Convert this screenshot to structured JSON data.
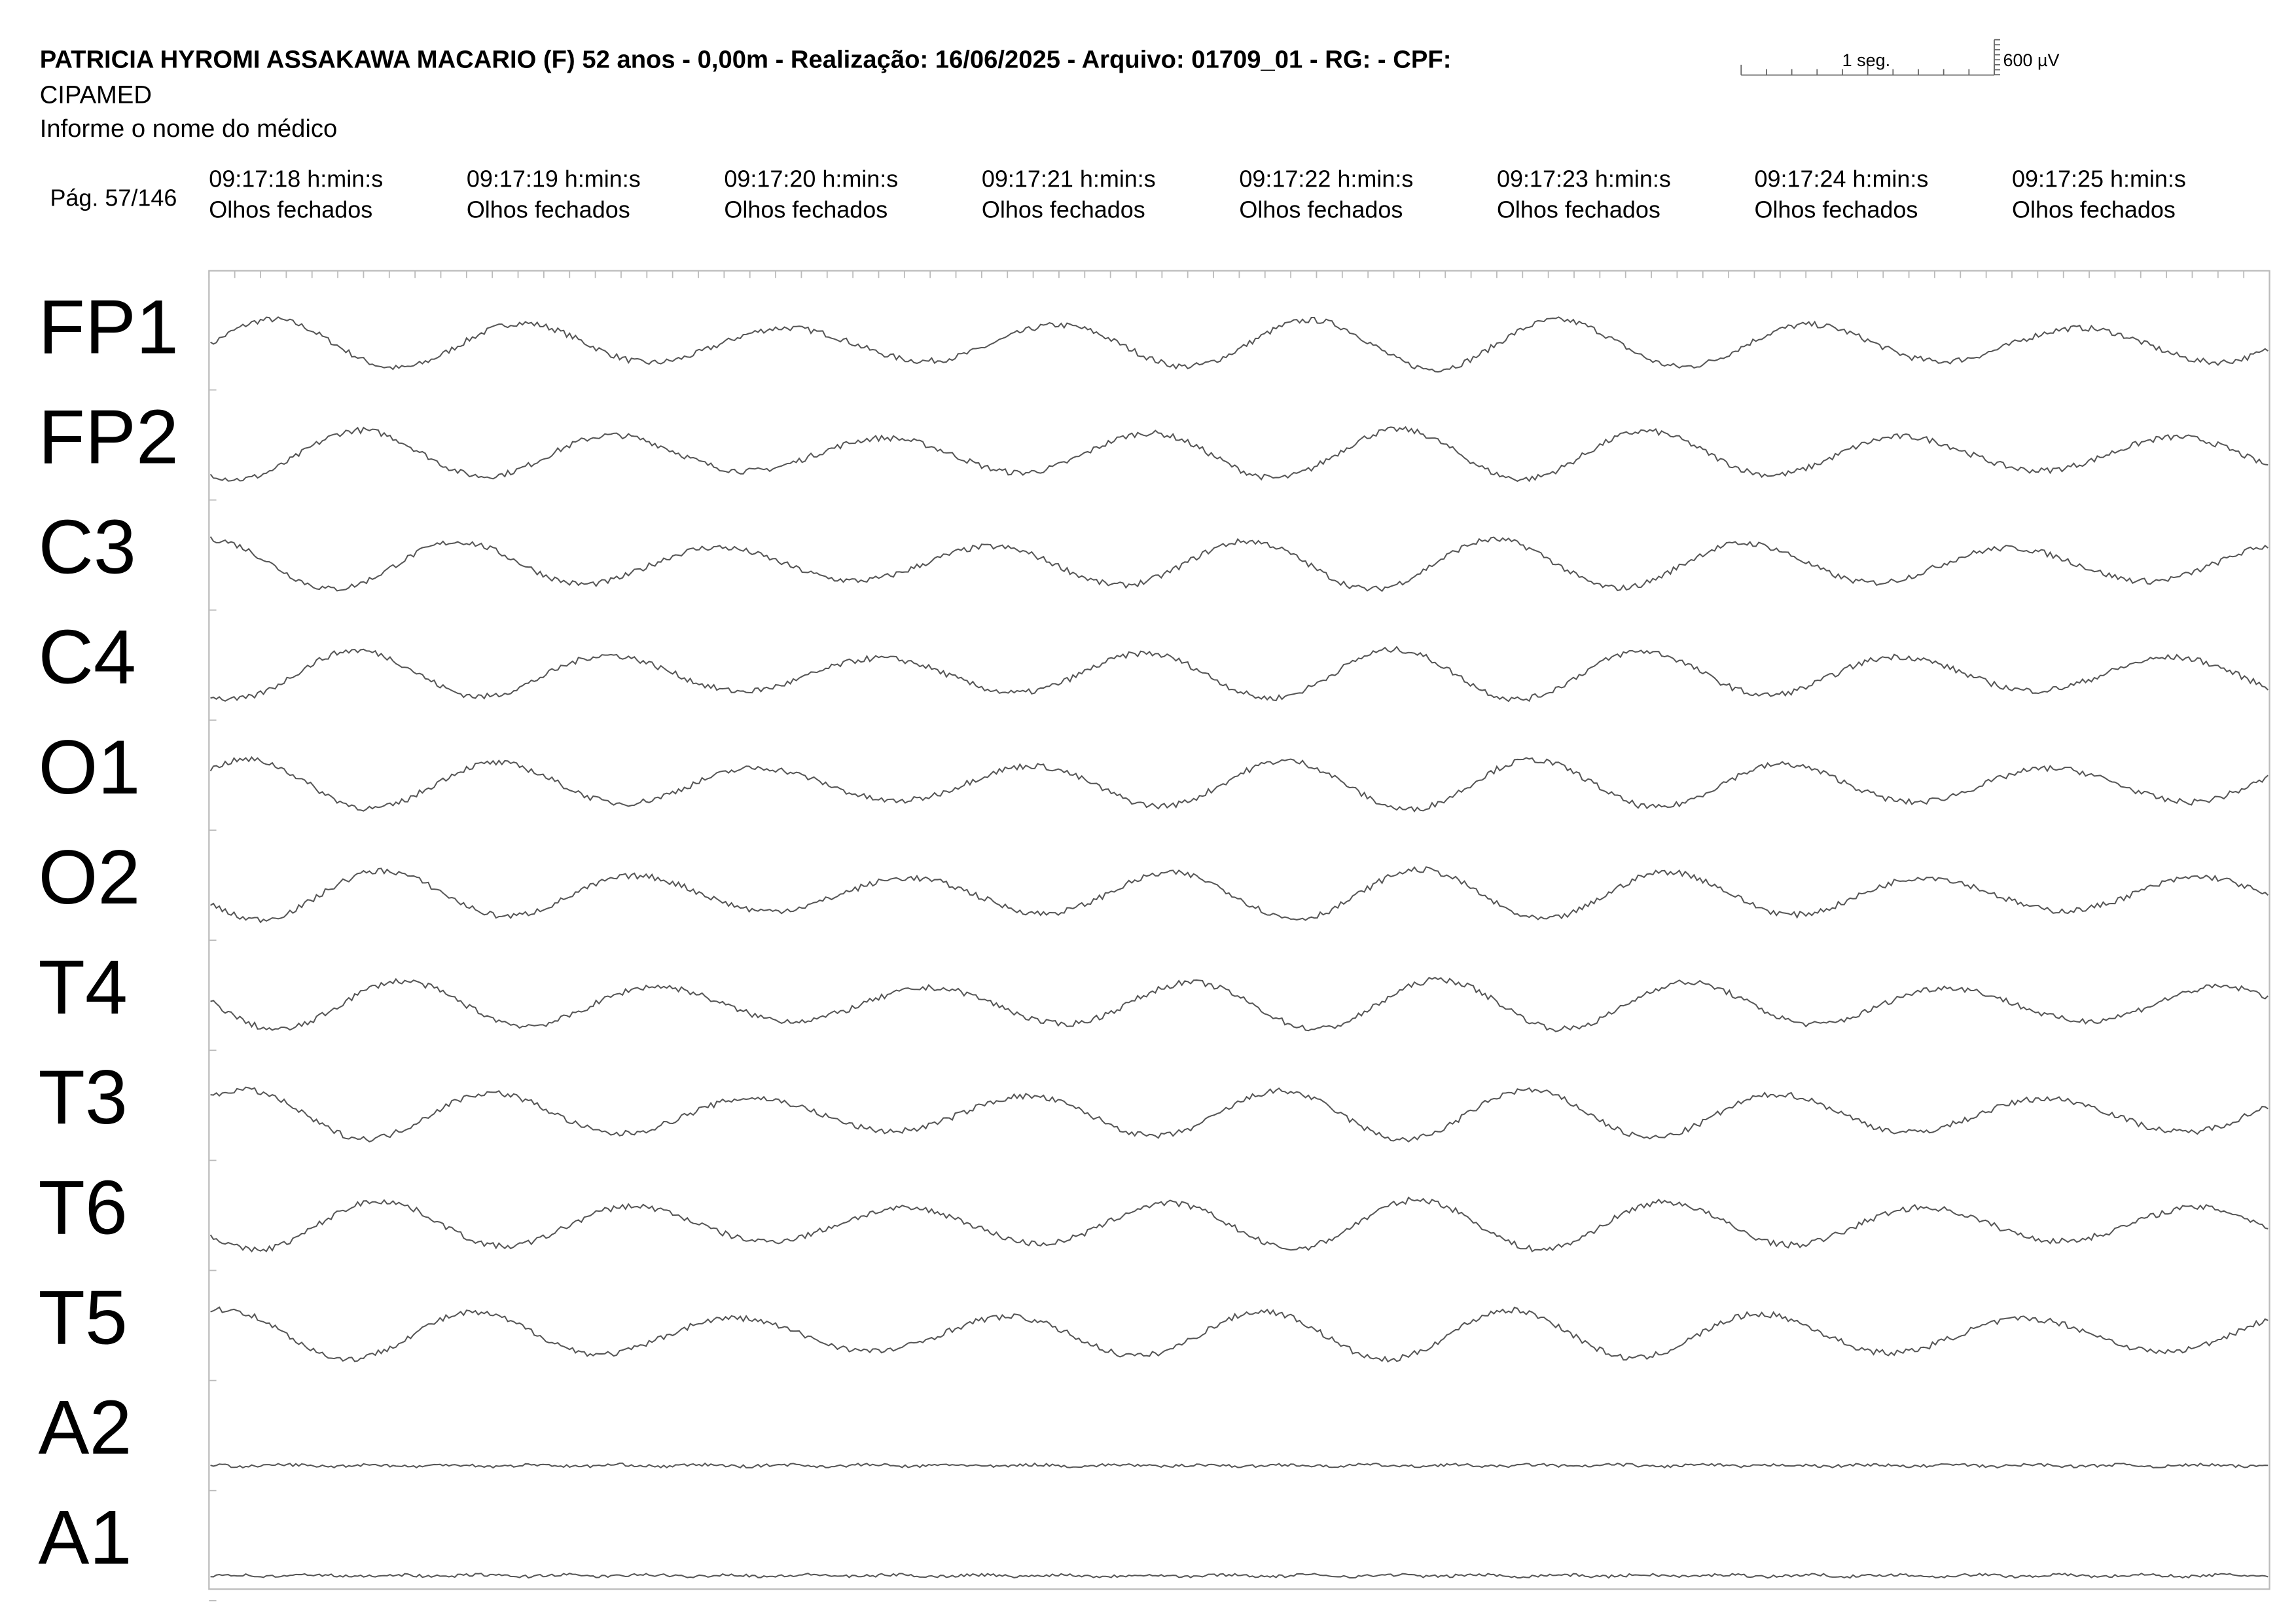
{
  "header": {
    "title": "PATRICIA HYROMI ASSAKAWA MACARIO (F) 52 anos - 0,00m - Realização: 16/06/2025 - Arquivo: 01709_01 - RG:  - CPF:",
    "clinic": "CIPAMED",
    "doctor": "Informe o nome do médico"
  },
  "scale": {
    "time": "1 seg.",
    "amplitude": "600 µV"
  },
  "page": "Pág. 57/146",
  "timestamps": [
    {
      "time": "09:17:18 h:min:s",
      "state": "Olhos fechados"
    },
    {
      "time": "09:17:19 h:min:s",
      "state": "Olhos fechados"
    },
    {
      "time": "09:17:20 h:min:s",
      "state": "Olhos fechados"
    },
    {
      "time": "09:17:21 h:min:s",
      "state": "Olhos fechados"
    },
    {
      "time": "09:17:22 h:min:s",
      "state": "Olhos fechados"
    },
    {
      "time": "09:17:23 h:min:s",
      "state": "Olhos fechados"
    },
    {
      "time": "09:17:24 h:min:s",
      "state": "Olhos fechados"
    },
    {
      "time": "09:17:25 h:min:s",
      "state": "Olhos fechados"
    }
  ],
  "channels": [
    "FP1",
    "FP2",
    "C3",
    "C4",
    "O1",
    "O2",
    "T4",
    "T3",
    "T6",
    "T5",
    "A2",
    "A1"
  ]
}
